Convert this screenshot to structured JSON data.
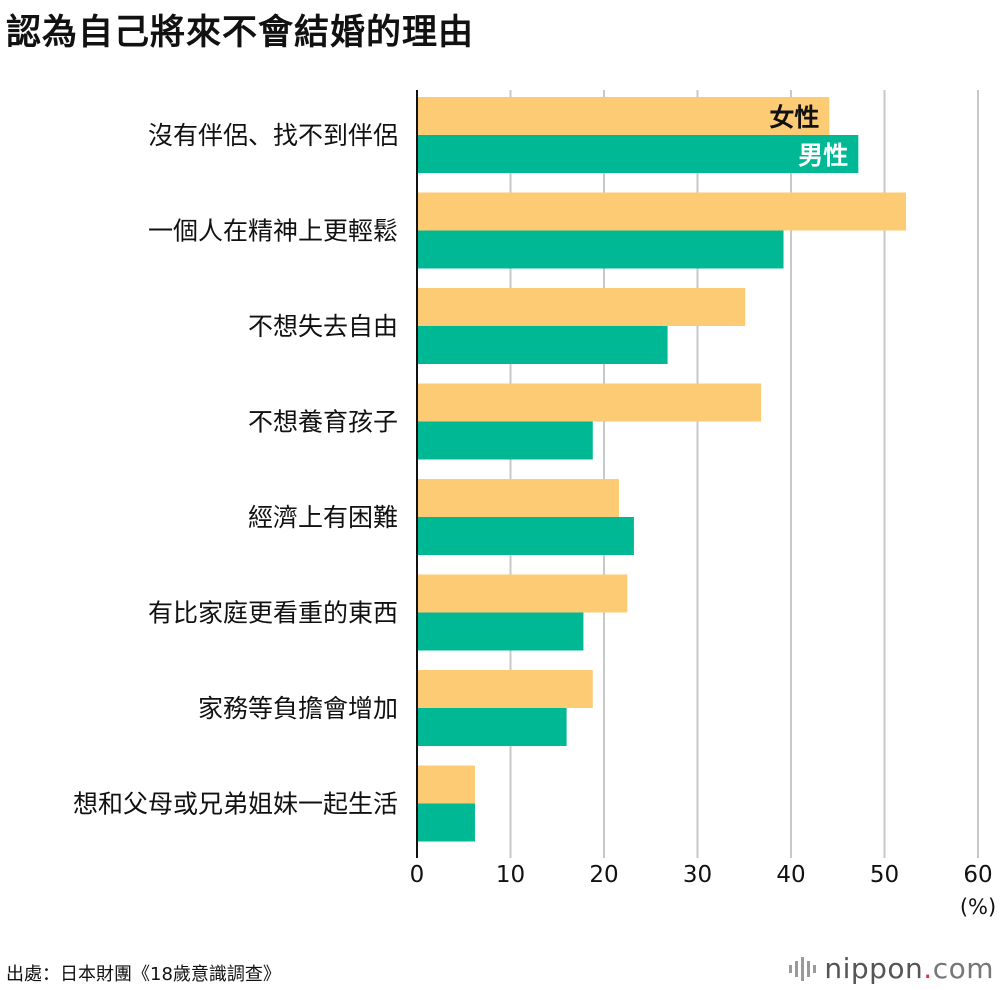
{
  "chart_data": {
    "type": "bar",
    "orientation": "horizontal",
    "title": "認為自己將來不會結婚的理由",
    "categories": [
      "沒有伴侶、找不到伴侶",
      "一個人在精神上更輕鬆",
      "不想失去自由",
      "不想養育孩子",
      "經濟上有困難",
      "有比家庭更看重的東西",
      "家務等負擔會增加",
      "想和父母或兄弟姐妹一起生活"
    ],
    "series": [
      {
        "name": "女性",
        "color": "#fccb73",
        "values": [
          44.1,
          52.3,
          35.1,
          36.8,
          21.6,
          22.5,
          18.8,
          6.2
        ]
      },
      {
        "name": "男性",
        "color": "#00b894",
        "values": [
          47.2,
          39.2,
          26.8,
          18.8,
          23.2,
          17.8,
          16.0,
          6.2
        ]
      }
    ],
    "xlim": [
      0,
      60
    ],
    "xticks": [
      0,
      10,
      20,
      30,
      40,
      50,
      60
    ],
    "unit": "(%)",
    "grid": true,
    "legend": "inside-first-bar"
  },
  "source": "出處：日本財團《18歲意識調查》",
  "logo": {
    "name": "nippon",
    "dot": ".",
    "suffix": "com",
    "icon": "soundwave-icon"
  }
}
